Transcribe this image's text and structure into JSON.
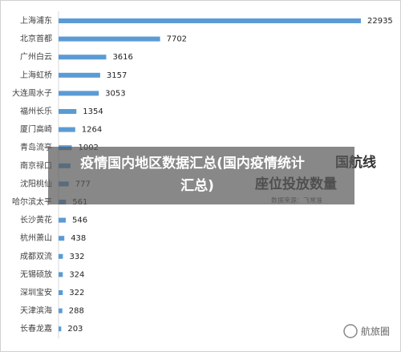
{
  "chart_data": {
    "type": "bar",
    "orientation": "horizontal",
    "categories": [
      "上海浦东",
      "北京首都",
      "广州白云",
      "上海虹桥",
      "大连周水子",
      "福州长乐",
      "厦门高崎",
      "青岛流亭",
      "南京禄口",
      "沈阳桃仙",
      "哈尔滨太平",
      "长沙黄花",
      "杭州萧山",
      "成都双流",
      "无锡硕放",
      "深圳宝安",
      "天津滨海",
      "长春龙嘉"
    ],
    "values": [
      22935,
      7702,
      3616,
      3157,
      3053,
      1354,
      1264,
      1002,
      900,
      777,
      561,
      546,
      438,
      332,
      324,
      322,
      288,
      203
    ],
    "value_labels": [
      "22935",
      "7702",
      "3616",
      "3157",
      "3053",
      "1354",
      "1264",
      "1002",
      null,
      "777",
      "561",
      "546",
      "438",
      "332",
      "324",
      "322",
      "288",
      "203"
    ],
    "color": "#5b9bd5",
    "xlim": [
      0,
      24000
    ],
    "title_fragments": [
      "国航线",
      "座位投放数量"
    ],
    "source": "数据来源：飞常准"
  },
  "overlay": {
    "lines": [
      "疫情国内地区数据汇总(国内疫情统计",
      "汇总)"
    ]
  },
  "watermark": "航旅圈"
}
